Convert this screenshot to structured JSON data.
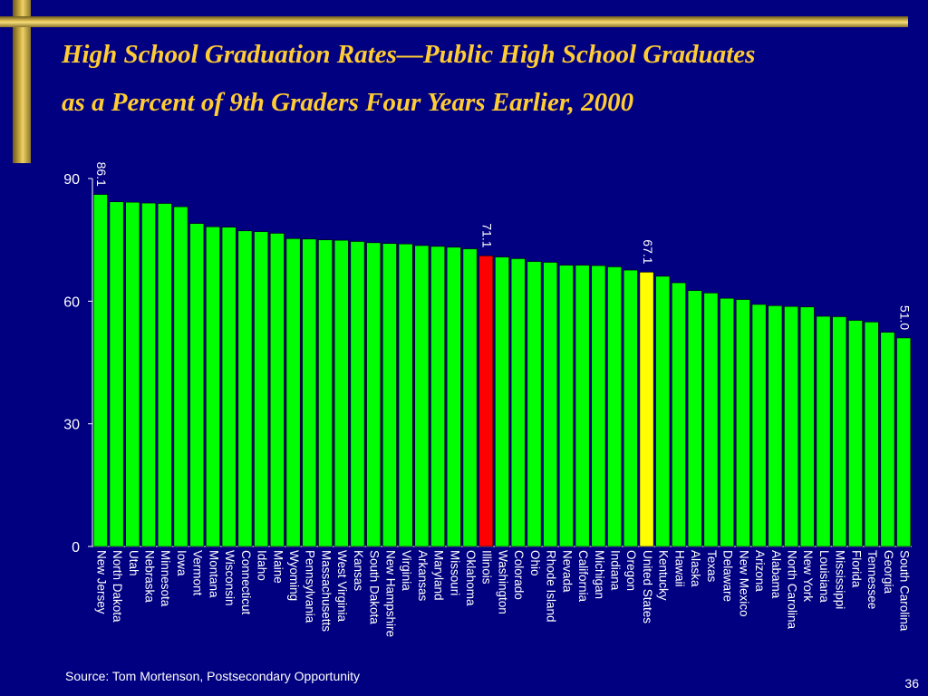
{
  "slide": {
    "title_line1": "High School Graduation Rates—Public High School Graduates",
    "title_line2": "as a Percent of 9th Graders Four Years Earlier, 2000",
    "source": "Source:  Tom Mortenson, Postsecondary Opportunity",
    "page_number": "36"
  },
  "colors": {
    "background": "#000080",
    "bar_default": "#00ff00",
    "bar_illinois": "#ff0000",
    "bar_united_states": "#ffff00",
    "title": "#ffcc33",
    "text": "#ffffff"
  },
  "chart_data": {
    "type": "bar",
    "ylim": [
      0,
      90
    ],
    "yticks": [
      0,
      30,
      60,
      90
    ],
    "grid": false,
    "categories": [
      "New Jersey",
      "North Dakota",
      "Utah",
      "Nebraska",
      "Minnesota",
      "Iowa",
      "Vermont",
      "Montana",
      "Wisconsin",
      "Connecticut",
      "Idaho",
      "Maine",
      "Wyoming",
      "Pennsylvania",
      "Massachusetts",
      "West Virginia",
      "Kansas",
      "South Dakota",
      "New Hampshire",
      "Virginia",
      "Arkansas",
      "Maryland",
      "Missouri",
      "Oklahoma",
      "Illinois",
      "Washington",
      "Colorado",
      "Ohio",
      "Rhode Island",
      "Nevada",
      "California",
      "Michigan",
      "Indiana",
      "Oregon",
      "United States",
      "Kentucky",
      "Hawaii",
      "Alaska",
      "Texas",
      "Delaware",
      "New Mexico",
      "Arizona",
      "Alabama",
      "North Carolina",
      "New York",
      "Louisiana",
      "Mississippi",
      "Florida",
      "Tennessee",
      "Georgia",
      "South Carolina"
    ],
    "values": [
      86.1,
      84.3,
      84.2,
      84.0,
      83.9,
      83.1,
      79.0,
      78.2,
      78.1,
      77.2,
      77.0,
      76.6,
      75.3,
      75.2,
      75.0,
      74.9,
      74.6,
      74.3,
      74.1,
      74.0,
      73.6,
      73.4,
      73.2,
      72.8,
      71.1,
      70.8,
      70.4,
      69.7,
      69.5,
      68.8,
      68.8,
      68.7,
      68.4,
      67.6,
      67.1,
      66.1,
      64.5,
      62.6,
      62.0,
      60.7,
      60.4,
      59.2,
      58.9,
      58.7,
      58.6,
      56.3,
      56.2,
      55.3,
      54.9,
      52.4,
      51.0
    ],
    "data_labels": [
      {
        "category": "New Jersey",
        "text": "86.1"
      },
      {
        "category": "Illinois",
        "text": "71.1"
      },
      {
        "category": "United States",
        "text": "67.1"
      },
      {
        "category": "South Carolina",
        "text": "51.0"
      }
    ],
    "highlighted": {
      "Illinois": "#ff0000",
      "United States": "#ffff00"
    }
  }
}
